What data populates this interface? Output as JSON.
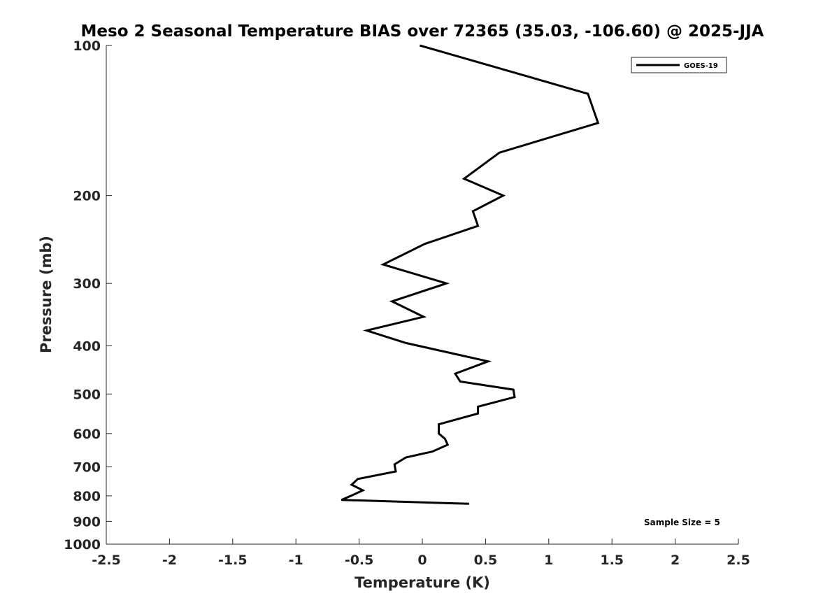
{
  "chart_data": {
    "type": "line",
    "title": "Meso 2 Seasonal Temperature BIAS over 72365 (35.03, -106.60) @ 2025-JJA",
    "xlabel": "Temperature (K)",
    "ylabel": "Pressure (mb)",
    "xlim": [
      -2.5,
      2.5
    ],
    "ylim": [
      100,
      1000
    ],
    "yscale": "log",
    "yreversed": true,
    "xticks": [
      -2.5,
      -2,
      -1.5,
      -1,
      -0.5,
      0,
      0.5,
      1,
      1.5,
      2,
      2.5
    ],
    "xtick_labels": [
      "-2.5",
      "-2",
      "-1.5",
      "-1",
      "-0.5",
      "0",
      "0.5",
      "1",
      "1.5",
      "2",
      "2.5"
    ],
    "yticks": [
      100,
      200,
      300,
      400,
      500,
      600,
      700,
      800,
      900,
      1000
    ],
    "ytick_labels": [
      "100",
      "200",
      "300",
      "400",
      "500",
      "600",
      "700",
      "800",
      "900",
      "1000"
    ],
    "grid": false,
    "legend_position": "top-right",
    "annotation": "Sample Size = 5",
    "series": [
      {
        "name": "GOES-19",
        "color": "#000000",
        "x": [
          -0.02,
          1.31,
          1.39,
          0.61,
          0.33,
          0.64,
          0.4,
          0.44,
          0.02,
          -0.31,
          0.19,
          -0.24,
          0.01,
          -0.44,
          -0.13,
          0.52,
          0.26,
          0.3,
          0.72,
          0.73,
          0.44,
          0.44,
          0.13,
          0.13,
          0.18,
          0.2,
          0.08,
          -0.13,
          -0.22,
          -0.21,
          -0.51,
          -0.56,
          -0.47,
          -0.55,
          -0.64,
          0.37
        ],
        "y": [
          100,
          125,
          143,
          164,
          185,
          200,
          215,
          230,
          250,
          275,
          300,
          326,
          350,
          373,
          395,
          430,
          455,
          472,
          490,
          507,
          530,
          547,
          575,
          600,
          615,
          632,
          652,
          670,
          692,
          715,
          740,
          760,
          780,
          797,
          815,
          830
        ]
      }
    ]
  }
}
